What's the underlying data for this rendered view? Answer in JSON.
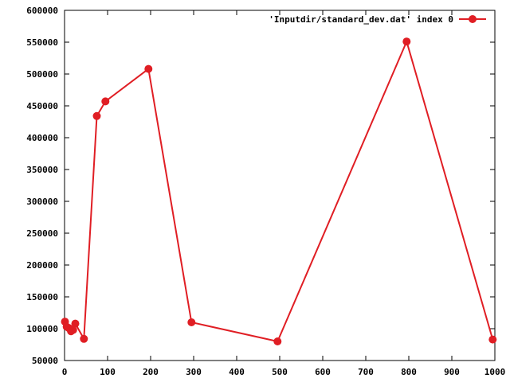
{
  "chart_data": {
    "type": "line",
    "legend": {
      "label": "'Inputdir/standard_dev.dat' index 0",
      "placement": "top-right"
    },
    "series": [
      {
        "name": "'Inputdir/standard_dev.dat' index 0",
        "color": "#e01e24",
        "points": [
          [
            1,
            111000
          ],
          [
            5,
            103000
          ],
          [
            10,
            101000
          ],
          [
            15,
            96000
          ],
          [
            20,
            98000
          ],
          [
            25,
            108000
          ],
          [
            45,
            84000
          ],
          [
            75,
            434000
          ],
          [
            95,
            457000
          ],
          [
            195,
            508000
          ],
          [
            295,
            110000
          ],
          [
            495,
            80000
          ],
          [
            795,
            551000
          ],
          [
            995,
            83000
          ]
        ]
      }
    ],
    "xlim": [
      0,
      1000
    ],
    "ylim": [
      50000,
      600000
    ],
    "xticks": [
      0,
      100,
      200,
      300,
      400,
      500,
      600,
      700,
      800,
      900,
      1000
    ],
    "yticks": [
      50000,
      100000,
      150000,
      200000,
      250000,
      300000,
      350000,
      400000,
      450000,
      500000,
      550000,
      600000
    ],
    "grid": false,
    "title": "",
    "xlabel": "",
    "ylabel": ""
  }
}
